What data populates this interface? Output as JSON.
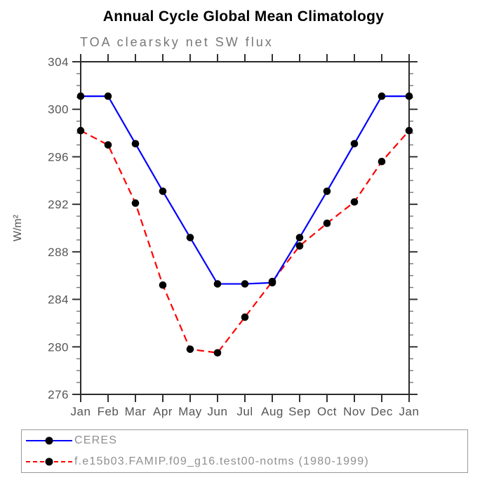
{
  "title": "Annual Cycle Global Mean Climatology",
  "subtitle": "TOA clearsky net SW flux",
  "chart_data": {
    "type": "line",
    "title": "Annual Cycle Global Mean Climatology",
    "subtitle": "TOA clearsky net SW flux",
    "xlabel": "",
    "ylabel": "W/m²",
    "ylim": [
      276,
      304
    ],
    "ytick_major": 4,
    "ytick_minor": 1,
    "grid": false,
    "legend_position": "bottom",
    "categories": [
      "Jan",
      "Feb",
      "Mar",
      "Apr",
      "May",
      "Jun",
      "Jul",
      "Aug",
      "Sep",
      "Oct",
      "Nov",
      "Dec",
      "Jan"
    ],
    "series": [
      {
        "name": "CERES",
        "color": "#0000ff",
        "line_style": "solid",
        "marker": "filled-circle",
        "marker_color": "#000000",
        "values": [
          301.1,
          301.1,
          297.1,
          293.1,
          289.2,
          285.3,
          285.3,
          285.4,
          289.2,
          293.1,
          297.1,
          301.1,
          301.1
        ]
      },
      {
        "name": "f.e15b03.FAMIP.f09_g16.test00-notms (1980-1999)",
        "color": "#ff0000",
        "line_style": "dashed",
        "marker": "filled-circle",
        "marker_color": "#000000",
        "values": [
          298.2,
          297.0,
          292.1,
          285.2,
          279.8,
          279.5,
          282.5,
          285.5,
          288.5,
          290.4,
          292.2,
          295.6,
          298.2
        ]
      }
    ]
  },
  "colors": {
    "axis": "#2a2a2a",
    "major_tick": "#333333",
    "minor_tick": "#777777",
    "tick_label": "#555555",
    "subtitle": "#777777",
    "legend_text": "#8f8f8f",
    "legend_border": "#9a9a9a"
  }
}
